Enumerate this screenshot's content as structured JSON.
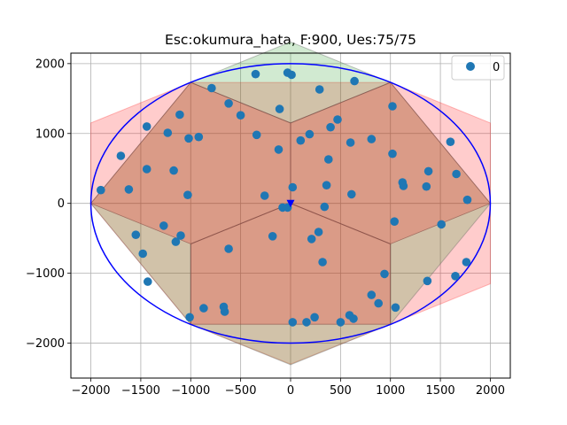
{
  "chart_data": {
    "type": "scatter",
    "title": "Esc:okumura_hata, F:900, Ues:75/75",
    "xlim": [
      -2200,
      2200
    ],
    "ylim": [
      -2500,
      2150
    ],
    "x_ticks": [
      -2000,
      -1500,
      -1000,
      -500,
      0,
      500,
      1000,
      1500,
      2000
    ],
    "x_tick_labels": [
      "−2000",
      "−1500",
      "−1000",
      "−500",
      "0",
      "500",
      "1000",
      "1500",
      "2000"
    ],
    "y_ticks": [
      -2000,
      -1000,
      0,
      1000,
      2000
    ],
    "y_tick_labels": [
      "−2000",
      "−1000",
      "0",
      "1000",
      "2000"
    ],
    "grid": true,
    "legend": {
      "placement": "top-right",
      "entries": [
        "0"
      ]
    },
    "colors": {
      "points": "#1f77b4",
      "circle": "#0000ff",
      "base_station": "#0000ff",
      "red_fill": "#ff0000",
      "green_fill": "#2ca02c",
      "sector_line": "#8c564b"
    },
    "coverage_circle": {
      "center": [
        0,
        0
      ],
      "rx": 2000,
      "ry": 2000
    },
    "base_station": [
      0,
      0
    ],
    "red_region": [
      [
        -2000,
        1150
      ],
      [
        -1000,
        1730
      ],
      [
        1000,
        1730
      ],
      [
        2000,
        1150
      ],
      [
        2000,
        0
      ],
      [
        2000,
        -1150
      ],
      [
        1000,
        -1730
      ],
      [
        0,
        -2300
      ],
      [
        -1000,
        -1730
      ],
      [
        -2000,
        0
      ]
    ],
    "green_hexagons": [
      [
        [
          0,
          1150
        ],
        [
          1000,
          1730
        ],
        [
          0,
          2310
        ],
        [
          -1000,
          1730
        ]
      ],
      [
        [
          -1000,
          -580
        ],
        [
          -1000,
          -1730
        ],
        [
          -2000,
          0
        ],
        [
          -1000,
          1730
        ],
        [
          0,
          1150
        ],
        [
          0,
          0
        ]
      ],
      [
        [
          1000,
          -580
        ],
        [
          1000,
          -1730
        ],
        [
          2000,
          0
        ],
        [
          1000,
          1730
        ],
        [
          0,
          1150
        ],
        [
          0,
          0
        ]
      ],
      [
        [
          -1000,
          -580
        ],
        [
          0,
          0
        ],
        [
          1000,
          -580
        ],
        [
          1000,
          -1730
        ],
        [
          0,
          -2310
        ],
        [
          -1000,
          -1730
        ]
      ]
    ],
    "sectors": [
      [
        [
          0,
          0
        ],
        [
          0,
          1150
        ],
        [
          -1000,
          1730
        ],
        [
          -2000,
          0
        ],
        [
          -1000,
          -580
        ]
      ],
      [
        [
          0,
          0
        ],
        [
          0,
          1150
        ],
        [
          1000,
          1730
        ],
        [
          2000,
          0
        ],
        [
          1000,
          -580
        ]
      ],
      [
        [
          0,
          0
        ],
        [
          -1000,
          -580
        ],
        [
          -1000,
          -1730
        ],
        [
          1000,
          -1730
        ],
        [
          1000,
          -580
        ]
      ]
    ],
    "series": [
      {
        "name": "0",
        "points": [
          [
            -1900,
            190
          ],
          [
            -1700,
            680
          ],
          [
            -1620,
            200
          ],
          [
            -1550,
            -450
          ],
          [
            -1480,
            -720
          ],
          [
            -1440,
            1100
          ],
          [
            -1440,
            490
          ],
          [
            -1430,
            -1120
          ],
          [
            -1270,
            -320
          ],
          [
            -1230,
            1010
          ],
          [
            -1170,
            470
          ],
          [
            -1150,
            -550
          ],
          [
            -1110,
            1270
          ],
          [
            -1100,
            -460
          ],
          [
            -1020,
            930
          ],
          [
            -1030,
            120
          ],
          [
            -1010,
            -1630
          ],
          [
            -920,
            950
          ],
          [
            -870,
            -1500
          ],
          [
            -790,
            1650
          ],
          [
            -670,
            -1480
          ],
          [
            -660,
            -1550
          ],
          [
            -620,
            1430
          ],
          [
            -620,
            -650
          ],
          [
            -500,
            1260
          ],
          [
            -350,
            1850
          ],
          [
            -340,
            980
          ],
          [
            -260,
            110
          ],
          [
            -180,
            -470
          ],
          [
            -120,
            770
          ],
          [
            -110,
            1350
          ],
          [
            -80,
            -60
          ],
          [
            -30,
            1870
          ],
          [
            -30,
            -60
          ],
          [
            10,
            1840
          ],
          [
            20,
            230
          ],
          [
            20,
            -1700
          ],
          [
            100,
            900
          ],
          [
            160,
            -1700
          ],
          [
            190,
            990
          ],
          [
            210,
            -510
          ],
          [
            240,
            -1630
          ],
          [
            280,
            -410
          ],
          [
            290,
            1630
          ],
          [
            320,
            -840
          ],
          [
            340,
            -50
          ],
          [
            360,
            260
          ],
          [
            380,
            630
          ],
          [
            400,
            1090
          ],
          [
            470,
            1200
          ],
          [
            500,
            -1700
          ],
          [
            590,
            -1600
          ],
          [
            600,
            870
          ],
          [
            610,
            130
          ],
          [
            630,
            -1650
          ],
          [
            640,
            1750
          ],
          [
            810,
            920
          ],
          [
            810,
            -1310
          ],
          [
            880,
            -1430
          ],
          [
            940,
            -1010
          ],
          [
            1020,
            1390
          ],
          [
            1020,
            710
          ],
          [
            1040,
            -260
          ],
          [
            1050,
            -1490
          ],
          [
            1120,
            300
          ],
          [
            1130,
            250
          ],
          [
            1360,
            240
          ],
          [
            1380,
            460
          ],
          [
            1370,
            -1110
          ],
          [
            1510,
            -300
          ],
          [
            1600,
            880
          ],
          [
            1650,
            -1040
          ],
          [
            1660,
            420
          ],
          [
            1760,
            -840
          ],
          [
            1770,
            50
          ]
        ]
      }
    ]
  }
}
